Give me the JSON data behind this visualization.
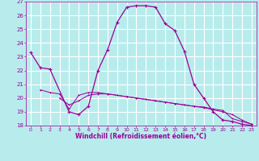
{
  "xlabel": "Windchill (Refroidissement éolien,°C)",
  "background_color": "#b8ecec",
  "grid_color": "#ffffff",
  "line_color": "#990099",
  "xlim": [
    -0.5,
    23.5
  ],
  "ylim": [
    18,
    27
  ],
  "yticks": [
    18,
    19,
    20,
    21,
    22,
    23,
    24,
    25,
    26,
    27
  ],
  "xticks": [
    0,
    1,
    2,
    3,
    4,
    5,
    6,
    7,
    8,
    9,
    10,
    11,
    12,
    13,
    14,
    15,
    16,
    17,
    18,
    19,
    20,
    21,
    22,
    23
  ],
  "series1_x": [
    0,
    1,
    2,
    4,
    5,
    6,
    7,
    8,
    9,
    10,
    11,
    12,
    13,
    14,
    15,
    16,
    17,
    18,
    19,
    20,
    21,
    22,
    23
  ],
  "series1_y": [
    23.3,
    22.2,
    22.1,
    19.0,
    18.8,
    19.4,
    22.0,
    23.5,
    25.5,
    26.6,
    26.7,
    26.7,
    26.6,
    25.4,
    24.9,
    23.4,
    21.0,
    20.0,
    19.0,
    18.4,
    18.3,
    18.1,
    18.0
  ],
  "series2_x": [
    1,
    2,
    3,
    4,
    5,
    6,
    7,
    8,
    9,
    10,
    11,
    12,
    13,
    14,
    15,
    16,
    17,
    18,
    19,
    20,
    21,
    22,
    23
  ],
  "series2_y": [
    20.6,
    20.4,
    20.3,
    19.2,
    20.2,
    20.4,
    20.4,
    20.3,
    20.2,
    20.1,
    20.0,
    19.9,
    19.8,
    19.7,
    19.6,
    19.5,
    19.4,
    19.35,
    19.2,
    19.1,
    18.5,
    18.3,
    18.1
  ],
  "series3_x": [
    3,
    4,
    5,
    6,
    7,
    8,
    9,
    10,
    11,
    12,
    13,
    14,
    15,
    16,
    17,
    18,
    19,
    20,
    21,
    22,
    23
  ],
  "series3_y": [
    20.0,
    19.5,
    19.8,
    20.2,
    20.3,
    20.3,
    20.2,
    20.1,
    20.0,
    19.9,
    19.8,
    19.7,
    19.6,
    19.5,
    19.4,
    19.3,
    19.15,
    19.0,
    18.8,
    18.4,
    18.1
  ]
}
